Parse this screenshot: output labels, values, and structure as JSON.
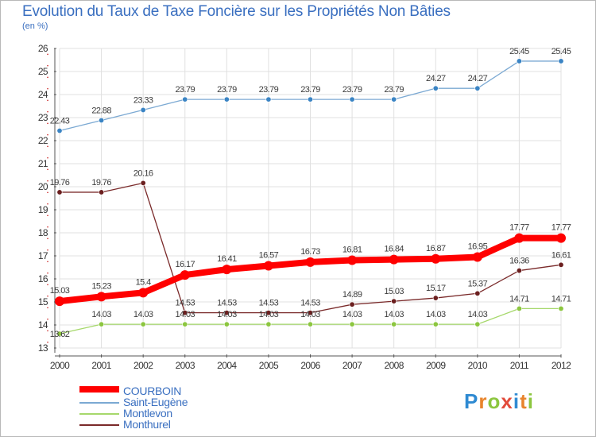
{
  "title": "Evolution du Taux de Taxe Foncière sur les Propriétés Non Bâties",
  "unit_label": "(en %)",
  "brand": {
    "text": "Proxiti",
    "letter_colors": [
      "#2f8ad2",
      "#e8842c",
      "#8cc63f",
      "#e24b3b",
      "#2f8ad2",
      "#e8842c",
      "#8cc63f"
    ]
  },
  "chart_data": {
    "type": "line",
    "title": "Evolution du Taux de Taxe Foncière sur les Propriétés Non Bâties",
    "ylabel": "(en %)",
    "xlabel": "",
    "ylim": [
      13,
      26
    ],
    "yticks": [
      13,
      14,
      15,
      16,
      17,
      18,
      19,
      20,
      21,
      22,
      23,
      24,
      25,
      26
    ],
    "categories": [
      "2000",
      "2001",
      "2002",
      "2003",
      "2004",
      "2005",
      "2006",
      "2007",
      "2008",
      "2009",
      "2010",
      "2011",
      "2012"
    ],
    "grid": true,
    "legend": "bottom-left",
    "series": [
      {
        "name": "Saint-Eugène",
        "color": "#7ba9d3",
        "marker": "#3a84c4",
        "weight": "thin",
        "values": [
          22.43,
          22.88,
          23.33,
          23.79,
          23.79,
          23.79,
          23.79,
          23.79,
          23.79,
          24.27,
          24.27,
          25.45,
          25.45
        ],
        "labels": [
          "22.43",
          "22.88",
          "23.33",
          "23.79",
          "23.79",
          "23.79",
          "23.79",
          "23.79",
          "23.79",
          "24.27",
          "24.27",
          "25.45",
          "25.45"
        ]
      },
      {
        "name": "Monthurel",
        "color": "#7a2a2a",
        "marker": "#6b1f1f",
        "weight": "thin",
        "values": [
          19.76,
          19.76,
          20.16,
          14.53,
          14.53,
          14.53,
          14.53,
          14.89,
          15.03,
          15.17,
          15.37,
          16.36,
          16.61
        ],
        "labels": [
          "19.76",
          "19.76",
          "20.16",
          "14.53",
          "14.53",
          "14.53",
          "14.53",
          "14.89",
          "15.03",
          "15.17",
          "15.37",
          "16.36",
          "16.61"
        ]
      },
      {
        "name": "Montlevon",
        "color": "#a6d86b",
        "marker": "#8cc63f",
        "weight": "thin",
        "values": [
          13.62,
          14.03,
          14.03,
          14.03,
          14.03,
          14.03,
          14.03,
          14.03,
          14.03,
          14.03,
          14.03,
          14.71,
          14.71
        ],
        "labels": [
          "13.62",
          "14.03",
          "14.03",
          "14.03",
          "14.03",
          "14.03",
          "14.03",
          "14.03",
          "14.03",
          "14.03",
          "14.03",
          "14.71",
          "14.71"
        ]
      },
      {
        "name": "COURBOIN",
        "color": "#ff0000",
        "marker": "#ff0000",
        "weight": "thick",
        "values": [
          15.03,
          15.23,
          15.4,
          16.17,
          16.41,
          16.57,
          16.73,
          16.81,
          16.84,
          16.87,
          16.95,
          17.77,
          17.77
        ],
        "labels": [
          "15.03",
          "15.23",
          "15.4",
          "16.17",
          "16.41",
          "16.57",
          "16.73",
          "16.81",
          "16.84",
          "16.87",
          "16.95",
          "17.77",
          "17.77"
        ]
      }
    ],
    "legend_order": [
      "COURBOIN",
      "Saint-Eugène",
      "Montlevon",
      "Monthurel"
    ]
  }
}
